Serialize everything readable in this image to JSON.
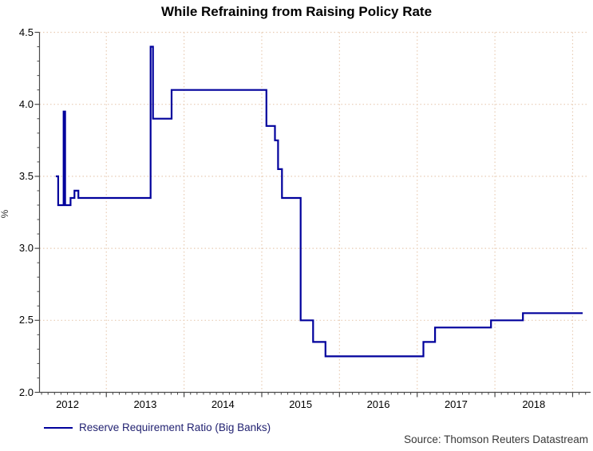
{
  "title": "While Refraining from Raising Policy Rate",
  "source": "Source: Thomson Reuters Datastream",
  "legend": {
    "label": "Reserve Requirement Ratio (Big Banks)"
  },
  "colors": {
    "line": "#00009c",
    "grid": "#e8ccb4",
    "axis": "#4a4a4a",
    "tick_text": "#000000",
    "legend_text": "#232372",
    "source_text": "#383838"
  },
  "chart_data": {
    "type": "line",
    "step": true,
    "title": "While Refraining from Raising Policy Rate",
    "xlabel": "",
    "ylabel": "%",
    "xlim": [
      2012.14,
      2019.18
    ],
    "ylim": [
      2.0,
      4.5
    ],
    "y_ticks": [
      2.0,
      2.5,
      3.0,
      3.5,
      4.0,
      4.5
    ],
    "y_minor_step": 0.1,
    "x_ticks": [
      2012,
      2013,
      2014,
      2015,
      2016,
      2017,
      2018
    ],
    "grid": "dotted",
    "legend_position": "bottom-left",
    "series": [
      {
        "name": "Reserve Requirement Ratio (Big Banks)",
        "color": "#00009c",
        "points": [
          [
            2012.35,
            3.5
          ],
          [
            2012.38,
            3.3
          ],
          [
            2012.45,
            3.95
          ],
          [
            2012.47,
            3.3
          ],
          [
            2012.54,
            3.35
          ],
          [
            2012.59,
            3.4
          ],
          [
            2012.64,
            3.35
          ],
          [
            2013.57,
            4.4
          ],
          [
            2013.6,
            3.9
          ],
          [
            2013.84,
            4.1
          ],
          [
            2015.06,
            3.85
          ],
          [
            2015.17,
            3.75
          ],
          [
            2015.21,
            3.55
          ],
          [
            2015.26,
            3.35
          ],
          [
            2015.5,
            2.5
          ],
          [
            2015.66,
            2.35
          ],
          [
            2015.82,
            2.25
          ],
          [
            2017.08,
            2.35
          ],
          [
            2017.23,
            2.45
          ],
          [
            2017.95,
            2.5
          ],
          [
            2018.36,
            2.55
          ]
        ],
        "end_x": 2019.13
      }
    ]
  }
}
